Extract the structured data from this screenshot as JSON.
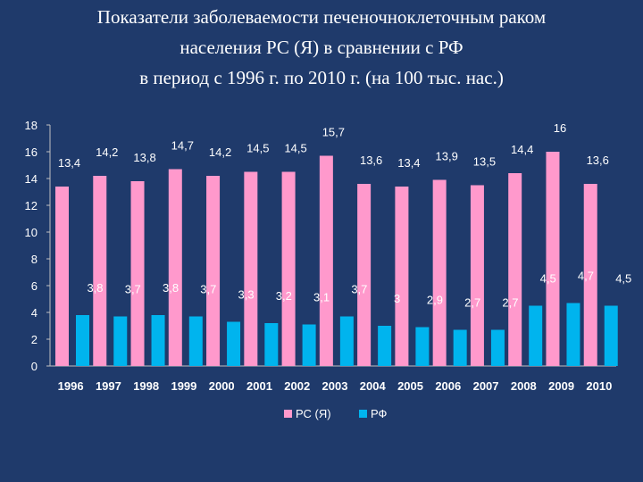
{
  "chart_data": {
    "type": "bar",
    "title_lines": [
      "Показатели заболеваемости печеночноклеточным раком",
      "населения РС (Я) в сравнении с РФ",
      "в период с 1996 г. по 2010 г.   (на 100 тыс. нас.)"
    ],
    "categories": [
      "1996",
      "1997",
      "1998",
      "1999",
      "2000",
      "2001",
      "2002",
      "2003",
      "2004",
      "2005",
      "2006",
      "2007",
      "2008",
      "2009",
      "2010"
    ],
    "series": [
      {
        "name": "РС (Я)",
        "color": "#ff99cc",
        "values": [
          13.4,
          14.2,
          13.8,
          14.7,
          14.2,
          14.5,
          14.5,
          15.7,
          13.6,
          13.4,
          13.9,
          13.5,
          14.4,
          16,
          13.6
        ],
        "labels": [
          "13,4",
          "14,2",
          "13,8",
          "14,7",
          "14,2",
          "14,5",
          "14,5",
          "15,7",
          "13,6",
          "13,4",
          "13,9",
          "13,5",
          "14,4",
          "16",
          "13,6"
        ]
      },
      {
        "name": "РФ",
        "color": "#00b4ee",
        "values": [
          3.8,
          3.7,
          3.8,
          3.7,
          3.3,
          3.2,
          3.1,
          3.7,
          3,
          2.9,
          2.7,
          2.7,
          4.5,
          4.7,
          4.5
        ],
        "labels": [
          "3,8",
          "3,7",
          "3,8",
          "3,7",
          "3,3",
          "3,2",
          "3,1",
          "3,7",
          "3",
          "2,9",
          "2,7",
          "2,7",
          "4,5",
          "4,7",
          "4,5"
        ]
      }
    ],
    "ylim": [
      0,
      18
    ],
    "yticks": [
      0,
      2,
      4,
      6,
      8,
      10,
      12,
      14,
      16,
      18
    ],
    "grid": false,
    "legend_position": "bottom"
  }
}
